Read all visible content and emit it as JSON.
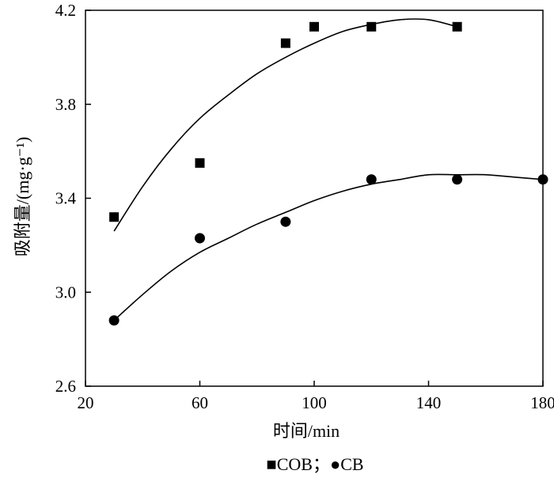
{
  "chart_data": {
    "type": "scatter",
    "title": "",
    "xlabel": "时间/min",
    "ylabel": "吸附量/(mg·g⁻¹)",
    "xlim": [
      20,
      180
    ],
    "ylim": [
      2.6,
      4.2
    ],
    "x_ticks": [
      20,
      60,
      100,
      140,
      180
    ],
    "y_ticks": [
      2.6,
      3.0,
      3.4,
      3.8,
      4.2
    ],
    "x_tick_labels": [
      "20",
      "60",
      "100",
      "140",
      "180"
    ],
    "y_tick_labels": [
      "2.6",
      "3.0",
      "3.4",
      "3.8",
      "4.2"
    ],
    "grid": false,
    "legend_position": "bottom",
    "legend_separator": "；",
    "series": [
      {
        "name": "COB",
        "marker": "square",
        "marker_glyph": "■",
        "color": "#000000",
        "points": [
          [
            30,
            3.32
          ],
          [
            60,
            3.55
          ],
          [
            90,
            4.06
          ],
          [
            100,
            4.13
          ],
          [
            120,
            4.13
          ],
          [
            150,
            4.13
          ]
        ],
        "fit_curve": [
          [
            30,
            3.26
          ],
          [
            40,
            3.45
          ],
          [
            50,
            3.61
          ],
          [
            60,
            3.74
          ],
          [
            70,
            3.84
          ],
          [
            80,
            3.93
          ],
          [
            90,
            4.0
          ],
          [
            100,
            4.06
          ],
          [
            110,
            4.11
          ],
          [
            120,
            4.14
          ],
          [
            130,
            4.16
          ],
          [
            140,
            4.16
          ],
          [
            150,
            4.13
          ]
        ]
      },
      {
        "name": "CB",
        "marker": "circle",
        "marker_glyph": "●",
        "color": "#000000",
        "points": [
          [
            30,
            2.88
          ],
          [
            60,
            3.23
          ],
          [
            90,
            3.3
          ],
          [
            120,
            3.48
          ],
          [
            150,
            3.48
          ],
          [
            180,
            3.48
          ]
        ],
        "fit_curve": [
          [
            30,
            2.88
          ],
          [
            40,
            2.99
          ],
          [
            50,
            3.09
          ],
          [
            60,
            3.17
          ],
          [
            70,
            3.23
          ],
          [
            80,
            3.29
          ],
          [
            90,
            3.34
          ],
          [
            100,
            3.39
          ],
          [
            110,
            3.43
          ],
          [
            120,
            3.46
          ],
          [
            130,
            3.48
          ],
          [
            140,
            3.5
          ],
          [
            150,
            3.5
          ],
          [
            160,
            3.5
          ],
          [
            170,
            3.49
          ],
          [
            180,
            3.48
          ]
        ]
      }
    ]
  }
}
